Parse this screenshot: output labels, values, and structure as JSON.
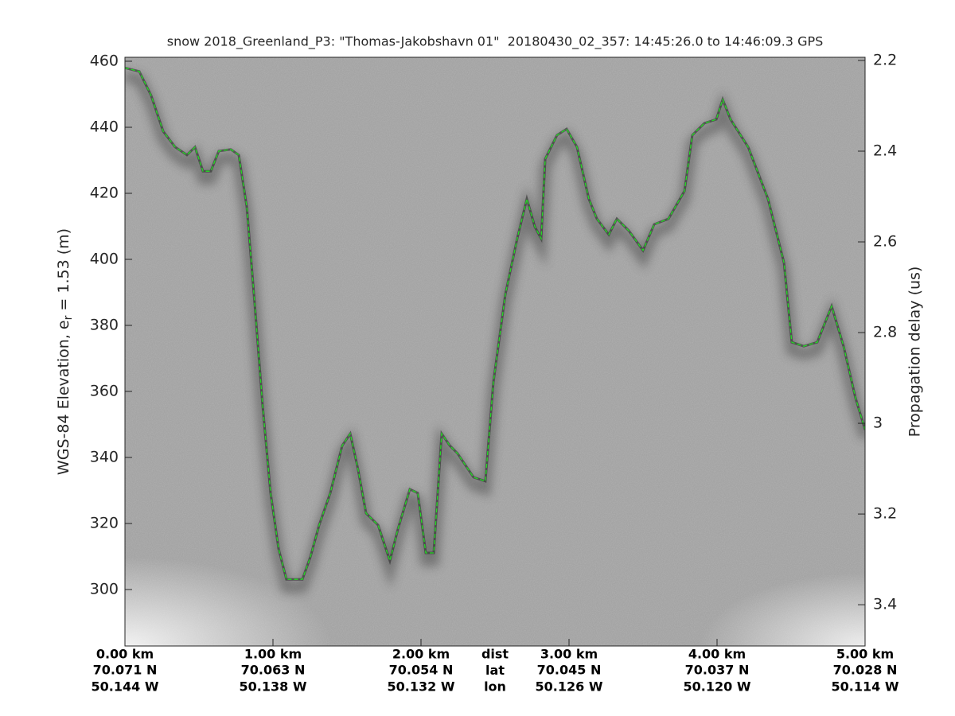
{
  "chart_data": {
    "type": "line",
    "title": "snow 2018_Greenland_P3: \"Thomas-Jakobshavn 01\"  20180430_02_357: 14:45:26.0 to 14:46:09.3 GPS",
    "y_label": "WGS-84 Elevation, e",
    "y_label_subscript": "r",
    "y_label_suffix": " = 1.53 (m)",
    "y2_label": "Propagation delay (us)",
    "row_labels": [
      "dist",
      "lat",
      "lon"
    ],
    "xlim": [
      0,
      5
    ],
    "xticks": [
      {
        "value": 0,
        "label": "0.00 km"
      },
      {
        "value": 1,
        "label": "1.00 km"
      },
      {
        "value": 2,
        "label": "2.00 km"
      },
      {
        "value": 3,
        "label": "3.00 km"
      },
      {
        "value": 4,
        "label": "4.00 km"
      },
      {
        "value": 5,
        "label": "5.00 km"
      }
    ],
    "lat_labels": [
      "70.071 N",
      "70.063 N",
      "70.054 N",
      "70.045 N",
      "70.037 N",
      "70.028 N"
    ],
    "lon_labels": [
      "50.144 W",
      "50.138 W",
      "50.132 W",
      "50.126 W",
      "50.120 W",
      "50.114 W"
    ],
    "ylim": [
      282.9,
      461.2
    ],
    "yticks": [
      300,
      320,
      340,
      360,
      380,
      400,
      420,
      440,
      460
    ],
    "y2lim": [
      3.491,
      2.193
    ],
    "y2ticks": [
      2.2,
      2.4,
      2.6,
      2.8,
      3,
      3.2,
      3.4
    ],
    "x": [
      0,
      0.097,
      0.177,
      0.258,
      0.339,
      0.419,
      0.473,
      0.527,
      0.58,
      0.634,
      0.715,
      0.769,
      0.823,
      0.876,
      0.93,
      0.984,
      1.038,
      1.091,
      1.199,
      1.253,
      1.312,
      1.387,
      1.468,
      1.522,
      1.575,
      1.629,
      1.71,
      1.79,
      1.844,
      1.925,
      1.978,
      2.032,
      2.086,
      2.14,
      2.194,
      2.247,
      2.355,
      2.435,
      2.489,
      2.57,
      2.65,
      2.715,
      2.769,
      2.812,
      2.839,
      2.919,
      2.984,
      3.054,
      3.134,
      3.188,
      3.269,
      3.323,
      3.403,
      3.5,
      3.575,
      3.672,
      3.78,
      3.833,
      3.914,
      3.995,
      4.038,
      4.091,
      4.21,
      4.344,
      4.452,
      4.505,
      4.586,
      4.677,
      4.774,
      4.855,
      4.935,
      5.0
    ],
    "series": [
      {
        "color": "#22dd22",
        "values": [
          458,
          456.9,
          449.6,
          438.8,
          434,
          431.6,
          434,
          426.7,
          426.7,
          432.8,
          433.3,
          431.6,
          415.9,
          387,
          355.7,
          329.2,
          312.3,
          303.1,
          303.1,
          309.9,
          319.5,
          329.2,
          343.6,
          347.2,
          336.4,
          323.1,
          319.5,
          308.7,
          318.3,
          330.4,
          329.2,
          311.1,
          311.1,
          347.2,
          343.6,
          341.2,
          334,
          332.8,
          362.9,
          389.4,
          406.3,
          418.3,
          409.9,
          406.3,
          430.4,
          437.6,
          439.5,
          434,
          418.3,
          412.3,
          407.5,
          412.3,
          408.7,
          402.7,
          410.6,
          412.3,
          420.7,
          437.6,
          441.2,
          442.4,
          448.4,
          442.4,
          434,
          418.3,
          399,
          374.9,
          373.7,
          374.9,
          385.8,
          373.7,
          358.1,
          348.4
        ]
      }
    ]
  }
}
